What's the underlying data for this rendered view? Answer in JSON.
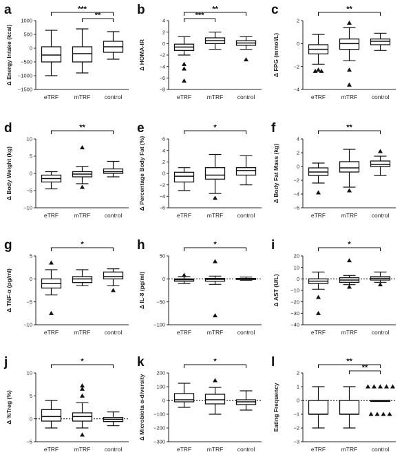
{
  "chart_data": [
    {
      "id": "a",
      "letter": "a",
      "type": "box",
      "ylabel": "Δ Energy Intake (kcal)",
      "ylim": [
        -1500,
        1000
      ],
      "yticks": [
        1000,
        500,
        0,
        -500,
        -1000,
        -1500
      ],
      "zero_line": false,
      "categories": [
        "eTRF",
        "mTRF",
        "control"
      ],
      "boxes": [
        {
          "min": -1000,
          "q1": -500,
          "median": -250,
          "q3": 50,
          "max": 650,
          "outliers": []
        },
        {
          "min": -900,
          "q1": -500,
          "median": -200,
          "q3": 50,
          "max": 700,
          "outliers": []
        },
        {
          "min": -400,
          "q1": -150,
          "median": 50,
          "q3": 250,
          "max": 600,
          "outliers": []
        }
      ],
      "brackets": [
        {
          "from": 0,
          "to": 2,
          "label": "***",
          "level": 0
        },
        {
          "from": 1,
          "to": 2,
          "label": "**",
          "level": 1
        }
      ]
    },
    {
      "id": "b",
      "letter": "b",
      "type": "box",
      "ylabel": "Δ HOMA-IR",
      "ylim": [
        -8,
        4
      ],
      "yticks": [
        4,
        2,
        0,
        -2,
        -4,
        -6,
        -8
      ],
      "zero_line": false,
      "categories": [
        "eTRF",
        "mTRF",
        "control"
      ],
      "boxes": [
        {
          "min": -2,
          "q1": -1.2,
          "median": -0.6,
          "q3": -0.1,
          "max": 1.2,
          "outliers": [
            -3.6,
            -4.4,
            -6.5
          ]
        },
        {
          "min": -1,
          "q1": 0,
          "median": 0.5,
          "q3": 1,
          "max": 2,
          "outliers": []
        },
        {
          "min": -1,
          "q1": -0.3,
          "median": 0.1,
          "q3": 0.5,
          "max": 1.2,
          "outliers": [
            -2.8
          ]
        }
      ],
      "brackets": [
        {
          "from": 0,
          "to": 2,
          "label": "**",
          "level": 0
        },
        {
          "from": 0,
          "to": 1,
          "label": "***",
          "level": 1
        }
      ]
    },
    {
      "id": "c",
      "letter": "c",
      "type": "box",
      "ylabel": "Δ FPG (mmol/L)",
      "ylim": [
        -4,
        2
      ],
      "yticks": [
        2,
        0,
        -2,
        -4
      ],
      "zero_line": false,
      "categories": [
        "eTRF",
        "mTRF",
        "control"
      ],
      "boxes": [
        {
          "min": -1.8,
          "q1": -0.9,
          "median": -0.5,
          "q3": -0.1,
          "max": 0.8,
          "outliers": [
            -2.3,
            -2.4,
            -2.4
          ]
        },
        {
          "min": -1.5,
          "q1": -0.5,
          "median": 0,
          "q3": 0.4,
          "max": 1.4,
          "outliers": [
            1.8,
            -2.3,
            -3.6
          ]
        },
        {
          "min": -0.6,
          "q1": -0.1,
          "median": 0.2,
          "q3": 0.4,
          "max": 0.9,
          "outliers": []
        }
      ],
      "brackets": [
        {
          "from": 0,
          "to": 2,
          "label": "**",
          "level": 0
        }
      ]
    },
    {
      "id": "d",
      "letter": "d",
      "type": "box",
      "ylabel": "Δ Body Weight (kg)",
      "ylim": [
        -10,
        10
      ],
      "yticks": [
        10,
        5,
        0,
        -5,
        -10
      ],
      "zero_line": false,
      "categories": [
        "eTRF",
        "mTRF",
        "control"
      ],
      "boxes": [
        {
          "min": -4.5,
          "q1": -2.5,
          "median": -1.5,
          "q3": -0.5,
          "max": 0.5,
          "outliers": []
        },
        {
          "min": -3,
          "q1": -1,
          "median": -0.2,
          "q3": 0.5,
          "max": 2,
          "outliers": [
            7.5,
            -4
          ]
        },
        {
          "min": -1,
          "q1": 0,
          "median": 0.5,
          "q3": 1.3,
          "max": 3.5,
          "outliers": []
        }
      ],
      "brackets": [
        {
          "from": 0,
          "to": 2,
          "label": "**",
          "level": 0
        }
      ]
    },
    {
      "id": "e",
      "letter": "e",
      "type": "box",
      "ylabel": "Δ Percentage Body Fat (%)",
      "ylim": [
        -6,
        6
      ],
      "yticks": [
        6,
        4,
        2,
        0,
        -2,
        -4,
        -6
      ],
      "zero_line": false,
      "categories": [
        "eTRF",
        "mTRF",
        "control"
      ],
      "boxes": [
        {
          "min": -3,
          "q1": -1.5,
          "median": -0.5,
          "q3": 0.2,
          "max": 1,
          "outliers": []
        },
        {
          "min": -3.5,
          "q1": -1,
          "median": -0.3,
          "q3": 1,
          "max": 3.3,
          "outliers": [
            -4.3
          ]
        },
        {
          "min": -2,
          "q1": -0.3,
          "median": 0.5,
          "q3": 1,
          "max": 3.1,
          "outliers": []
        }
      ],
      "brackets": [
        {
          "from": 0,
          "to": 2,
          "label": "*",
          "level": 0
        }
      ]
    },
    {
      "id": "f",
      "letter": "f",
      "type": "box",
      "ylabel": "Δ Body Fat Mass (kg)",
      "ylim": [
        -6,
        4
      ],
      "yticks": [
        4,
        2,
        0,
        -2,
        -4,
        -6
      ],
      "zero_line": false,
      "categories": [
        "eTRF",
        "mTRF",
        "control"
      ],
      "boxes": [
        {
          "min": -2.4,
          "q1": -1.3,
          "median": -0.8,
          "q3": -0.2,
          "max": 0.5,
          "outliers": [
            -3.8
          ]
        },
        {
          "min": -3,
          "q1": -0.8,
          "median": -0.2,
          "q3": 0.7,
          "max": 2.5,
          "outliers": [
            -3.5
          ]
        },
        {
          "min": -1.3,
          "q1": 0,
          "median": 0.3,
          "q3": 0.8,
          "max": 1.5,
          "outliers": [
            2.2
          ]
        }
      ],
      "brackets": [
        {
          "from": 0,
          "to": 2,
          "label": "**",
          "level": 0
        }
      ]
    },
    {
      "id": "g",
      "letter": "g",
      "type": "box",
      "ylabel": "Δ TNF-α (pg/ml)",
      "ylim": [
        -10,
        5
      ],
      "yticks": [
        5,
        0,
        -5,
        -10
      ],
      "zero_line": false,
      "categories": [
        "eTRF",
        "mTRF",
        "control"
      ],
      "boxes": [
        {
          "min": -3.5,
          "q1": -2,
          "median": -1,
          "q3": 0,
          "max": 2,
          "outliers": [
            3.5,
            -7.5
          ]
        },
        {
          "min": -1.5,
          "q1": -0.8,
          "median": 0,
          "q3": 0.5,
          "max": 2,
          "outliers": []
        },
        {
          "min": -1.5,
          "q1": 0,
          "median": 0.5,
          "q3": 1.5,
          "max": 2.2,
          "outliers": [
            -2.5
          ]
        }
      ],
      "brackets": [
        {
          "from": 0,
          "to": 2,
          "label": "*",
          "level": 0
        }
      ]
    },
    {
      "id": "h",
      "letter": "h",
      "type": "box",
      "ylabel": "Δ IL-8 (pg/ml)",
      "ylim": [
        -100,
        50
      ],
      "yticks": [
        50,
        0,
        -50,
        -100
      ],
      "zero_line": true,
      "categories": [
        "eTRF",
        "mTRF",
        "control"
      ],
      "boxes": [
        {
          "min": -10,
          "q1": -5,
          "median": -2,
          "q3": 0,
          "max": 5,
          "outliers": [
            8
          ]
        },
        {
          "min": -12,
          "q1": -5,
          "median": -1,
          "q3": 1,
          "max": 6,
          "outliers": [
            38,
            -80
          ]
        },
        {
          "min": -3,
          "q1": -1,
          "median": 0,
          "q3": 1,
          "max": 4,
          "outliers": []
        }
      ],
      "brackets": [
        {
          "from": 0,
          "to": 2,
          "label": "*",
          "level": 0
        }
      ]
    },
    {
      "id": "i",
      "letter": "i",
      "type": "box",
      "ylabel": "Δ AST (U/L)",
      "ylim": [
        -40,
        20
      ],
      "yticks": [
        20,
        10,
        0,
        -10,
        -20,
        -30,
        -40
      ],
      "zero_line": true,
      "categories": [
        "eTRF",
        "mTRF",
        "control"
      ],
      "boxes": [
        {
          "min": -9,
          "q1": -4,
          "median": -2,
          "q3": 0,
          "max": 6,
          "outliers": [
            -16,
            -30
          ]
        },
        {
          "min": -5,
          "q1": -3,
          "median": -1,
          "q3": 1,
          "max": 3,
          "outliers": [
            16,
            -7
          ]
        },
        {
          "min": -3,
          "q1": -1,
          "median": 0.5,
          "q3": 2,
          "max": 6,
          "outliers": [
            -5
          ]
        }
      ],
      "brackets": [
        {
          "from": 0,
          "to": 2,
          "label": "*",
          "level": 0
        }
      ]
    },
    {
      "id": "j",
      "letter": "j",
      "type": "box",
      "ylabel": "Δ %Treg (%)",
      "ylim": [
        -5,
        10
      ],
      "yticks": [
        10,
        5,
        0,
        -5
      ],
      "zero_line": true,
      "categories": [
        "eTRF",
        "mTRF",
        "control"
      ],
      "boxes": [
        {
          "min": -2,
          "q1": -0.5,
          "median": 0.5,
          "q3": 2,
          "max": 4,
          "outliers": []
        },
        {
          "min": -2,
          "q1": -0.5,
          "median": 0.5,
          "q3": 1.3,
          "max": 3.5,
          "outliers": [
            7.2,
            6.5,
            5,
            -3.5
          ]
        },
        {
          "min": -1.5,
          "q1": -0.6,
          "median": -0.1,
          "q3": 0.3,
          "max": 1.5,
          "outliers": []
        }
      ],
      "brackets": [
        {
          "from": 0,
          "to": 2,
          "label": "*",
          "level": 0
        }
      ]
    },
    {
      "id": "k",
      "letter": "k",
      "type": "box",
      "ylabel": "Δ Microbiota α-diversity",
      "ylim": [
        -300,
        200
      ],
      "yticks": [
        200,
        100,
        0,
        -100,
        -200,
        -300
      ],
      "zero_line": true,
      "categories": [
        "eTRF",
        "mTRF",
        "control"
      ],
      "boxes": [
        {
          "min": -50,
          "q1": -10,
          "median": 5,
          "q3": 50,
          "max": 125,
          "outliers": []
        },
        {
          "min": -100,
          "q1": -25,
          "median": 5,
          "q3": 45,
          "max": 95,
          "outliers": [
            145
          ]
        },
        {
          "min": -70,
          "q1": -30,
          "median": -10,
          "q3": 5,
          "max": 70,
          "outliers": []
        }
      ],
      "brackets": [
        {
          "from": 0,
          "to": 2,
          "label": "*",
          "level": 0
        }
      ]
    },
    {
      "id": "l",
      "letter": "l",
      "type": "box",
      "ylabel": "Eating Frequency",
      "ylim": [
        -3,
        2
      ],
      "yticks": [
        2,
        1,
        0,
        -1,
        -2,
        -3
      ],
      "zero_line": true,
      "categories": [
        "eTRF",
        "mTRF",
        "control"
      ],
      "boxes": [
        {
          "min": -2,
          "q1": -1,
          "median": -1,
          "q3": 0,
          "max": 1,
          "outliers": []
        },
        {
          "min": -2,
          "q1": -1,
          "median": -1,
          "q3": 0,
          "max": 1,
          "outliers": []
        },
        {
          "min": 0,
          "q1": 0,
          "median": 0,
          "q3": 0,
          "max": 0,
          "outliers": [
            1,
            1,
            1,
            1,
            1,
            -1,
            -1,
            -1,
            -1
          ]
        }
      ],
      "brackets": [
        {
          "from": 0,
          "to": 2,
          "label": "**",
          "level": 0
        },
        {
          "from": 1,
          "to": 2,
          "label": "**",
          "level": 1
        }
      ]
    }
  ]
}
